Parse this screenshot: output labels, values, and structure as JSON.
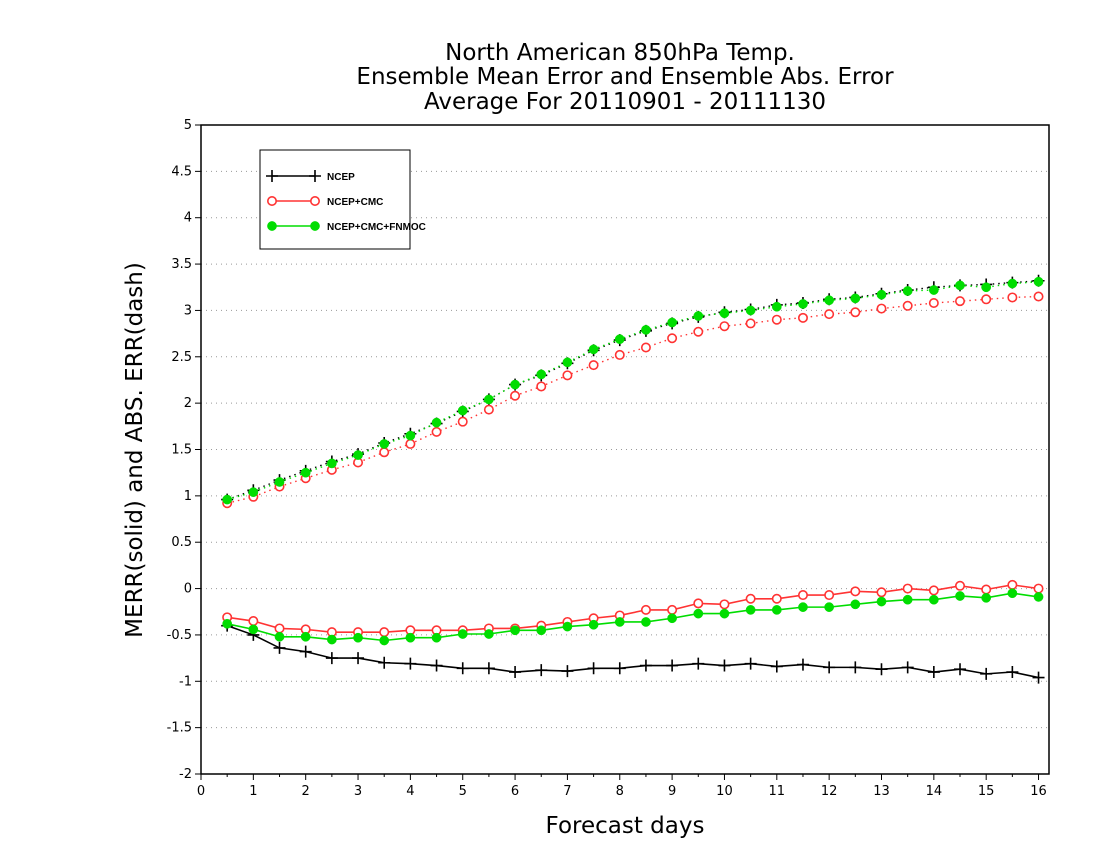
{
  "chart_data": {
    "type": "line",
    "title": [
      "North American 850hPa Temp.",
      "Ensemble Mean Error and Ensemble Abs. Error",
      "Average For 20110901 - 20111130"
    ],
    "xlabel": "Forecast days",
    "ylabel": "MERR(solid) and ABS. ERR(dash)",
    "xlim": [
      0,
      16.2
    ],
    "ylim": [
      -2,
      5
    ],
    "x_ticks": [
      "0",
      "1",
      "2",
      "3",
      "4",
      "5",
      "6",
      "7",
      "8",
      "9",
      "10",
      "11",
      "12",
      "13",
      "14",
      "15",
      "16"
    ],
    "y_ticks": [
      "-2",
      "-1.5",
      "-1",
      "-0.5",
      "0",
      "0.5",
      "1",
      "1.5",
      "2",
      "2.5",
      "3",
      "3.5",
      "4",
      "4.5",
      "5"
    ],
    "y_grid": true,
    "legend_position": "top-left",
    "x": [
      0.5,
      1,
      1.5,
      2,
      2.5,
      3,
      3.5,
      4,
      4.5,
      5,
      5.5,
      6,
      6.5,
      7,
      7.5,
      8,
      8.5,
      9,
      9.5,
      10,
      10.5,
      11,
      11.5,
      12,
      12.5,
      13,
      13.5,
      14,
      14.5,
      15,
      15.5,
      16
    ],
    "series": [
      {
        "name": "NCEP",
        "color": "#000000",
        "marker": "plus",
        "merr": [
          -0.4,
          -0.5,
          -0.64,
          -0.68,
          -0.75,
          -0.75,
          -0.8,
          -0.81,
          -0.83,
          -0.86,
          -0.86,
          -0.9,
          -0.88,
          -0.89,
          -0.86,
          -0.86,
          -0.83,
          -0.83,
          -0.81,
          -0.83,
          -0.81,
          -0.84,
          -0.82,
          -0.85,
          -0.85,
          -0.87,
          -0.85,
          -0.9,
          -0.87,
          -0.92,
          -0.9,
          -0.96
        ],
        "abs_err": [
          0.96,
          1.06,
          1.17,
          1.27,
          1.37,
          1.45,
          1.57,
          1.67,
          1.78,
          1.91,
          2.04,
          2.2,
          2.3,
          2.43,
          2.57,
          2.68,
          2.78,
          2.86,
          2.93,
          2.98,
          3.01,
          3.06,
          3.08,
          3.12,
          3.14,
          3.18,
          3.22,
          3.25,
          3.27,
          3.28,
          3.3,
          3.32
        ]
      },
      {
        "name": "NCEP+CMC",
        "color": "#ff3333",
        "marker": "circle-open",
        "merr": [
          -0.31,
          -0.35,
          -0.43,
          -0.44,
          -0.47,
          -0.47,
          -0.47,
          -0.45,
          -0.45,
          -0.45,
          -0.43,
          -0.43,
          -0.4,
          -0.36,
          -0.32,
          -0.29,
          -0.23,
          -0.23,
          -0.16,
          -0.17,
          -0.11,
          -0.11,
          -0.07,
          -0.07,
          -0.03,
          -0.04,
          0.0,
          -0.02,
          0.03,
          -0.01,
          0.04,
          0.0
        ],
        "abs_err": [
          0.92,
          0.99,
          1.1,
          1.19,
          1.28,
          1.36,
          1.47,
          1.56,
          1.69,
          1.8,
          1.93,
          2.08,
          2.18,
          2.3,
          2.41,
          2.52,
          2.6,
          2.7,
          2.77,
          2.83,
          2.86,
          2.9,
          2.92,
          2.96,
          2.98,
          3.02,
          3.05,
          3.08,
          3.1,
          3.12,
          3.14,
          3.15
        ]
      },
      {
        "name": "NCEP+CMC+FNMOC",
        "color": "#00dd00",
        "marker": "circle-filled",
        "merr": [
          -0.38,
          -0.44,
          -0.52,
          -0.52,
          -0.55,
          -0.53,
          -0.56,
          -0.53,
          -0.53,
          -0.49,
          -0.49,
          -0.45,
          -0.45,
          -0.41,
          -0.39,
          -0.36,
          -0.36,
          -0.32,
          -0.27,
          -0.27,
          -0.23,
          -0.23,
          -0.2,
          -0.2,
          -0.17,
          -0.14,
          -0.12,
          -0.12,
          -0.08,
          -0.1,
          -0.05,
          -0.09
        ],
        "abs_err": [
          0.96,
          1.04,
          1.15,
          1.25,
          1.35,
          1.44,
          1.56,
          1.65,
          1.79,
          1.92,
          2.04,
          2.2,
          2.31,
          2.44,
          2.58,
          2.69,
          2.79,
          2.87,
          2.94,
          2.97,
          3.0,
          3.04,
          3.07,
          3.11,
          3.13,
          3.17,
          3.21,
          3.22,
          3.27,
          3.25,
          3.29,
          3.31
        ]
      }
    ]
  }
}
